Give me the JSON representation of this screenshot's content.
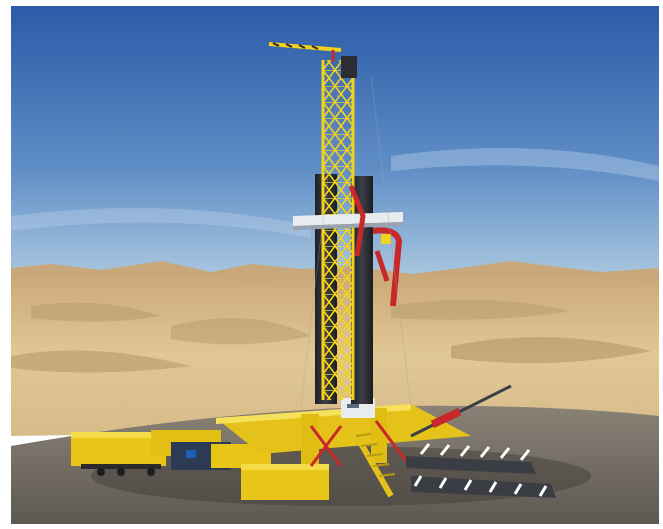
{
  "image": {
    "subject": "drilling-rig-render",
    "sky_top": "#2f5fae",
    "sky_horizon": "#9fc0dd",
    "dune_color": "#d9bd8a",
    "dune_shadow": "#b59a6a",
    "ground_color": "#7a746c",
    "rig_yellow": "#f2d21a",
    "rig_red": "#c8282a",
    "tower_dark": "#2b2d33",
    "deck_white": "#e8ecef",
    "pipe_white": "#f5f5f5"
  }
}
